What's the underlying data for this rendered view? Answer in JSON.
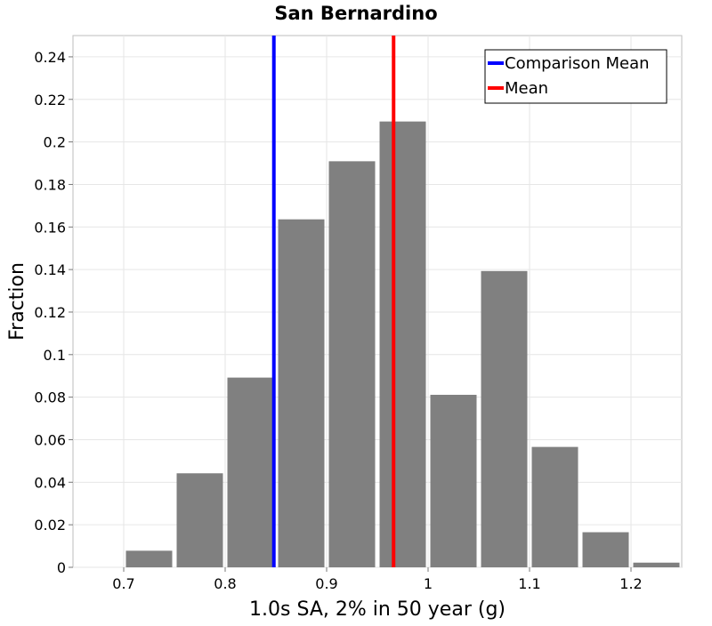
{
  "chart_data": {
    "type": "bar",
    "title": "San Bernardino",
    "xlabel": "1.0s SA, 2% in 50 year (g)",
    "ylabel": "Fraction",
    "xlim": [
      0.65,
      1.25
    ],
    "ylim": [
      0,
      0.25
    ],
    "bin_width": 0.05,
    "x_ticks": [
      0.7,
      0.8,
      0.9,
      1.0,
      1.1,
      1.2
    ],
    "x_tick_labels": [
      "0.7",
      "0.8",
      "0.9",
      "1",
      "1.1",
      "1.2"
    ],
    "y_ticks": [
      0,
      0.02,
      0.04,
      0.06,
      0.08,
      0.1,
      0.12,
      0.14,
      0.16,
      0.18,
      0.2,
      0.22,
      0.24
    ],
    "y_tick_labels": [
      "0",
      "0.02",
      "0.04",
      "0.06",
      "0.08",
      "0.1",
      "0.12",
      "0.14",
      "0.16",
      "0.18",
      "0.2",
      "0.22",
      "0.24"
    ],
    "bins": [
      {
        "x0": 0.65,
        "x1": 0.7,
        "value": 0.0
      },
      {
        "x0": 0.7,
        "x1": 0.75,
        "value": 0.0078
      },
      {
        "x0": 0.75,
        "x1": 0.8,
        "value": 0.0442
      },
      {
        "x0": 0.8,
        "x1": 0.85,
        "value": 0.0892
      },
      {
        "x0": 0.85,
        "x1": 0.9,
        "value": 0.1636
      },
      {
        "x0": 0.9,
        "x1": 0.95,
        "value": 0.1909
      },
      {
        "x0": 0.95,
        "x1": 1.0,
        "value": 0.2096
      },
      {
        "x0": 1.0,
        "x1": 1.05,
        "value": 0.0811
      },
      {
        "x0": 1.05,
        "x1": 1.1,
        "value": 0.1393
      },
      {
        "x0": 1.1,
        "x1": 1.15,
        "value": 0.0566
      },
      {
        "x0": 1.15,
        "x1": 1.2,
        "value": 0.0165
      },
      {
        "x0": 1.2,
        "x1": 1.25,
        "value": 0.0022
      }
    ],
    "reference_lines": [
      {
        "name": "Comparison Mean",
        "x": 0.848,
        "color": "#0000ff"
      },
      {
        "name": "Mean",
        "x": 0.966,
        "color": "#ff0000"
      }
    ],
    "bar_color": "#808080",
    "grid": true,
    "legend_position": "top-right"
  }
}
